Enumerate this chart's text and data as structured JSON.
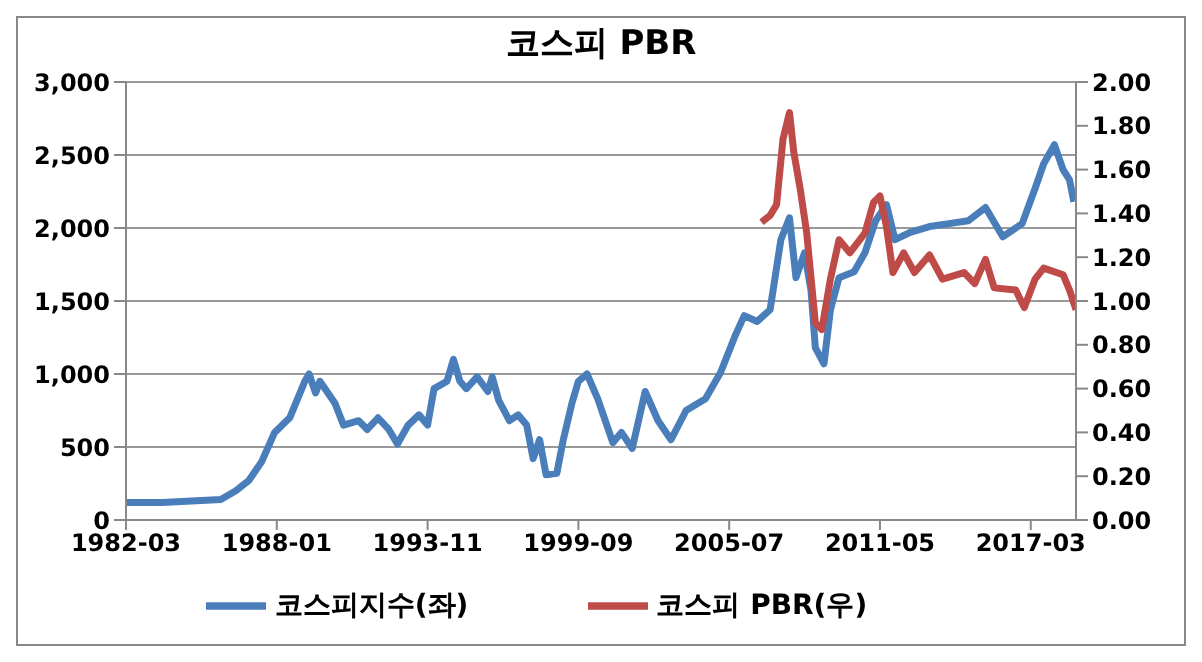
{
  "chart_data": {
    "type": "line",
    "title": "코스피 PBR",
    "xlim": [
      "1982-03",
      "2018-12"
    ],
    "xticks": [
      "1982-03",
      "1988-01",
      "1993-11",
      "1999-09",
      "2005-07",
      "2011-05",
      "2017-03"
    ],
    "ylim": [
      0,
      3000
    ],
    "yticks": [
      {
        "value": 0,
        "label": "0"
      },
      {
        "value": 500,
        "label": "500"
      },
      {
        "value": 1000,
        "label": "1,000"
      },
      {
        "value": 1500,
        "label": "1,500"
      },
      {
        "value": 2000,
        "label": "2,000"
      },
      {
        "value": 2500,
        "label": "2,500"
      },
      {
        "value": 3000,
        "label": "3,000"
      }
    ],
    "y2lim": [
      0,
      2
    ],
    "y2ticks": [
      {
        "value": 0,
        "label": "0.00"
      },
      {
        "value": 0.2,
        "label": "0.20"
      },
      {
        "value": 0.4,
        "label": "0.40"
      },
      {
        "value": 0.6,
        "label": "0.60"
      },
      {
        "value": 0.8,
        "label": "0.80"
      },
      {
        "value": 1,
        "label": "1.00"
      },
      {
        "value": 1.2,
        "label": "1.20"
      },
      {
        "value": 1.4,
        "label": "1.40"
      },
      {
        "value": 1.6,
        "label": "1.60"
      },
      {
        "value": 1.8,
        "label": "1.80"
      },
      {
        "value": 2,
        "label": "2.00"
      }
    ],
    "grid": "y",
    "legend": "bottom",
    "line_style": "solid",
    "series": [
      {
        "name": "코스피지수(좌)",
        "color": "#4a7ebb",
        "x": [
          "1982-03",
          "1983-08",
          "1985-11",
          "1986-06",
          "1986-12",
          "1987-06",
          "1987-12",
          "1988-07",
          "1989-02",
          "1989-04",
          "1989-07",
          "1989-09",
          "1990-04",
          "1990-08",
          "1991-03",
          "1991-07",
          "1991-12",
          "1992-05",
          "1992-09",
          "1993-02",
          "1993-07",
          "1993-11",
          "1994-02",
          "1994-08",
          "1994-11",
          "1995-02",
          "1995-05",
          "1995-10",
          "1996-03",
          "1996-05",
          "1996-08",
          "1997-01",
          "1997-05",
          "1997-09",
          "1997-12",
          "1998-03",
          "1998-06",
          "1998-11",
          "1999-02",
          "1999-06",
          "1999-09",
          "2000-01",
          "2000-06",
          "2001-01",
          "2001-05",
          "2001-10",
          "2002-04",
          "2002-10",
          "2003-04",
          "2003-11",
          "2004-08",
          "2005-03",
          "2005-10",
          "2006-02",
          "2006-08",
          "2007-02",
          "2007-07",
          "2007-11",
          "2008-02",
          "2008-06",
          "2008-09",
          "2008-11",
          "2009-03",
          "2009-06",
          "2009-10",
          "2010-05",
          "2010-10",
          "2011-03",
          "2011-08",
          "2011-12",
          "2012-07",
          "2013-04",
          "2014-01",
          "2014-10",
          "2015-06",
          "2016-02",
          "2016-11",
          "2017-05",
          "2017-09",
          "2018-02",
          "2018-06",
          "2018-09",
          "2018-11"
        ],
        "values": [
          120,
          120,
          140,
          200,
          270,
          400,
          600,
          700,
          950,
          1000,
          870,
          950,
          800,
          650,
          680,
          620,
          700,
          620,
          520,
          650,
          720,
          650,
          900,
          950,
          1100,
          950,
          900,
          980,
          880,
          980,
          820,
          680,
          720,
          650,
          420,
          550,
          310,
          320,
          550,
          800,
          950,
          1000,
          830,
          530,
          600,
          490,
          880,
          680,
          550,
          750,
          830,
          1010,
          1270,
          1400,
          1360,
          1440,
          1920,
          2070,
          1660,
          1830,
          1570,
          1180,
          1070,
          1440,
          1660,
          1700,
          1830,
          2050,
          2160,
          1920,
          1970,
          2010,
          2030,
          2050,
          2140,
          1940,
          2030,
          2270,
          2440,
          2570,
          2400,
          2330,
          2180
        ]
      },
      {
        "name": "코스피 PBR(우)",
        "color": "#be4b48",
        "axis": "y2",
        "x": [
          "2006-10",
          "2007-02",
          "2007-05",
          "2007-08",
          "2007-11",
          "2008-01",
          "2008-04",
          "2008-07",
          "2008-11",
          "2009-02",
          "2009-06",
          "2009-10",
          "2010-03",
          "2010-10",
          "2011-02",
          "2011-05",
          "2011-08",
          "2011-11",
          "2012-04",
          "2012-09",
          "2013-04",
          "2013-10",
          "2014-08",
          "2015-01",
          "2015-06",
          "2015-10",
          "2016-08",
          "2016-12",
          "2017-05",
          "2017-09",
          "2018-06",
          "2018-09",
          "2018-12"
        ],
        "values": [
          1.36,
          1.39,
          1.44,
          1.74,
          1.86,
          1.68,
          1.51,
          1.31,
          0.9,
          0.87,
          1.1,
          1.28,
          1.22,
          1.31,
          1.45,
          1.48,
          1.34,
          1.13,
          1.22,
          1.13,
          1.21,
          1.1,
          1.13,
          1.08,
          1.19,
          1.06,
          1.05,
          0.97,
          1.1,
          1.15,
          1.12,
          1.05,
          0.96
        ]
      }
    ]
  }
}
